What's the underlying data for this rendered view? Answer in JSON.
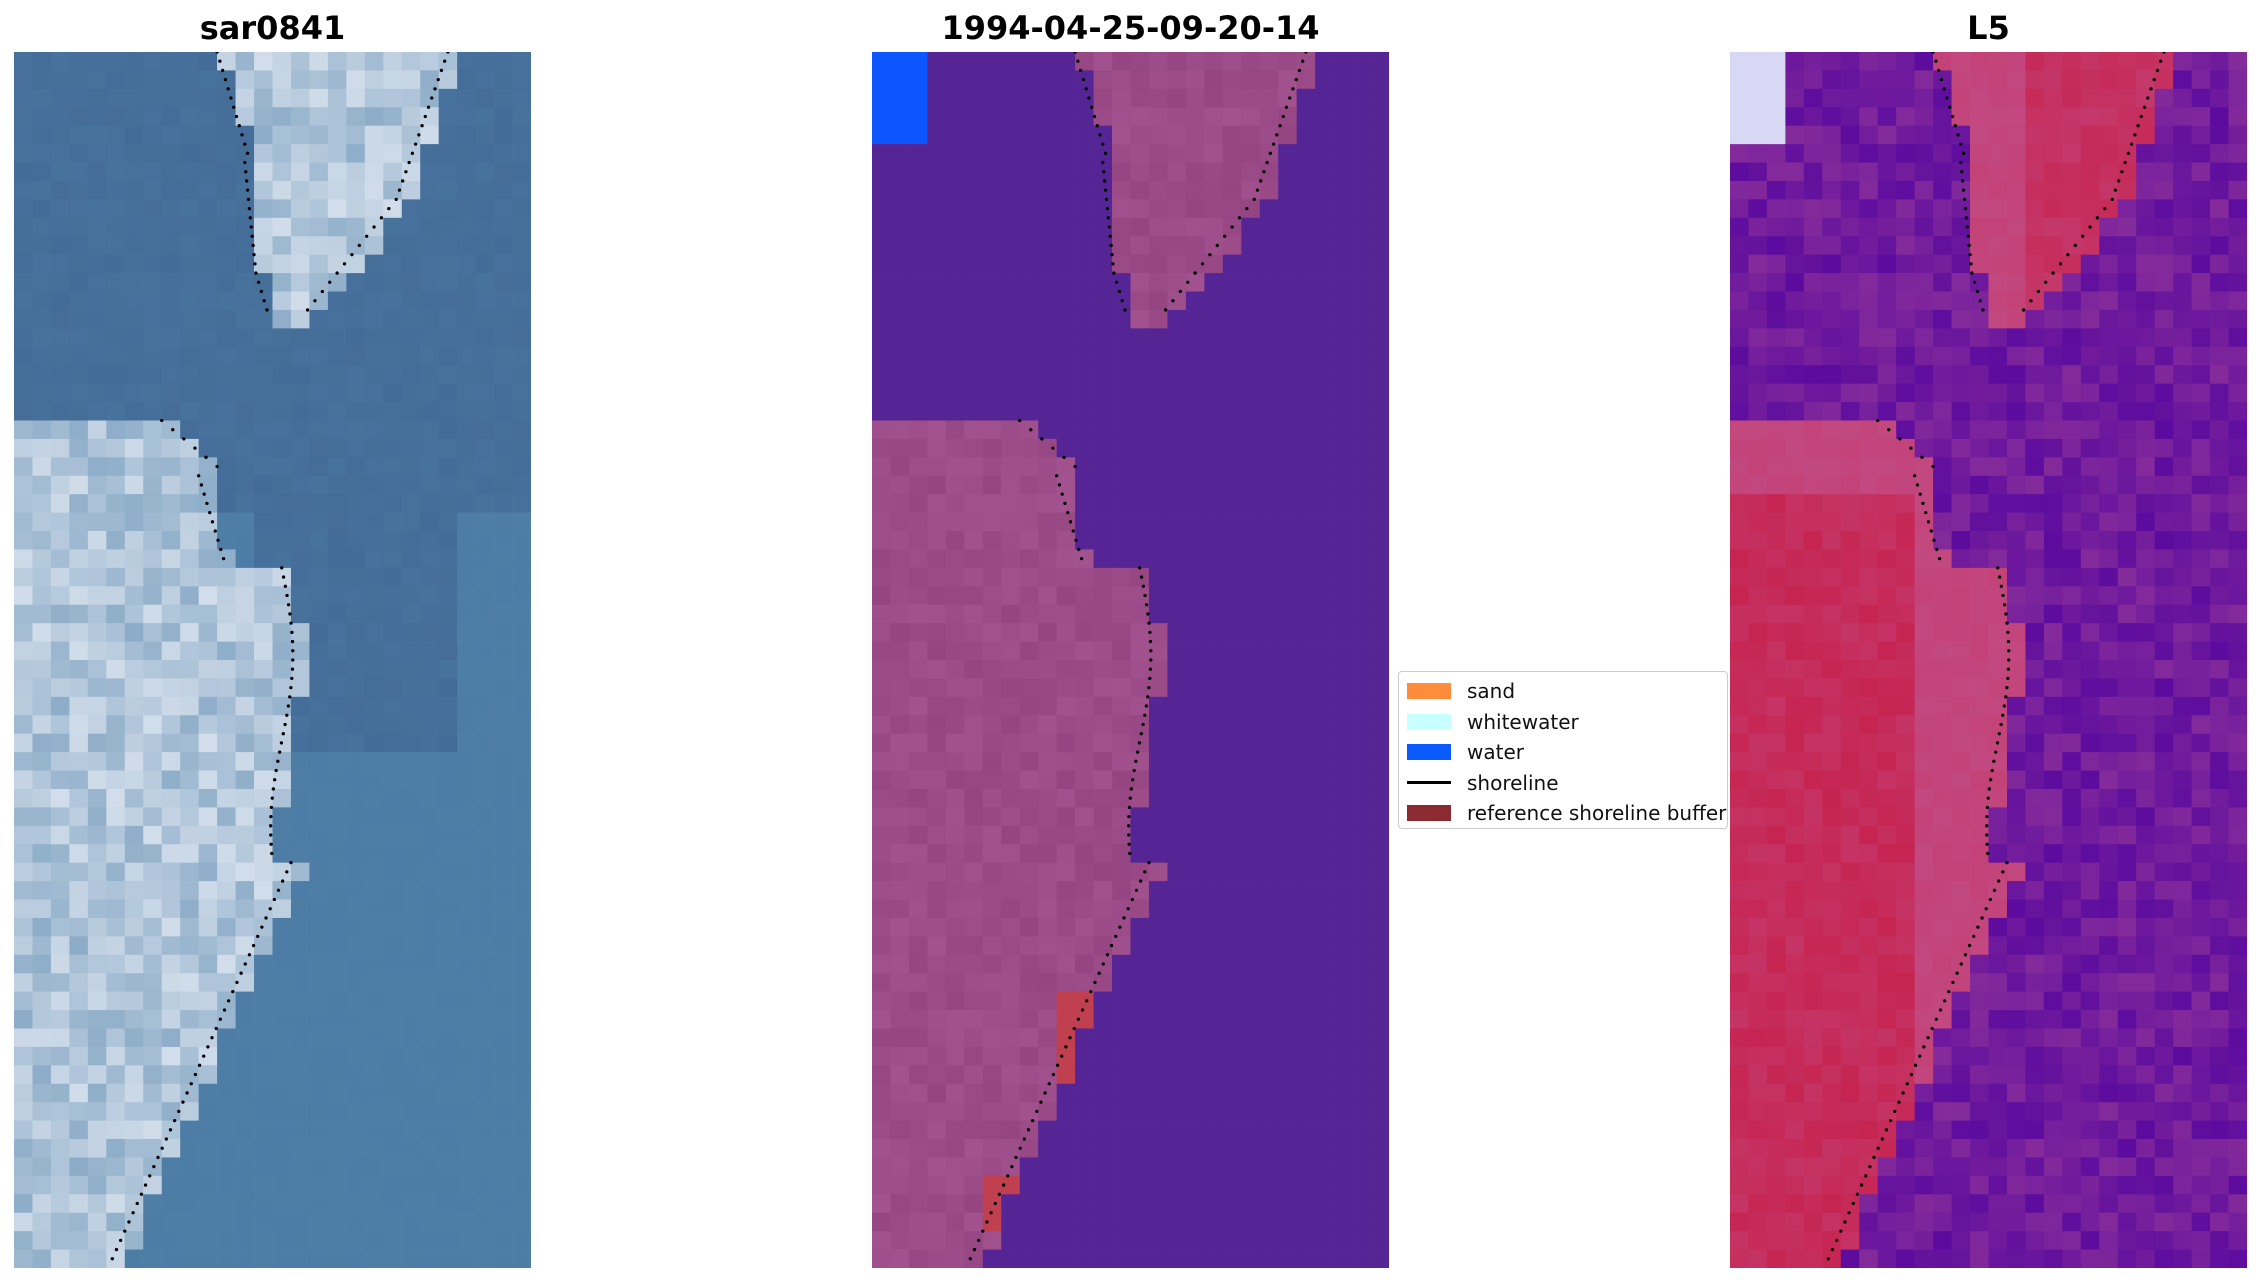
{
  "panels": [
    {
      "title": "sar0841",
      "kind": "rgb"
    },
    {
      "title": "1994-04-25-09-20-14",
      "kind": "classified"
    },
    {
      "title": "L5",
      "kind": "index"
    }
  ],
  "legend": {
    "items": [
      {
        "label": "sand",
        "type": "patch",
        "color": "#ff8c3a"
      },
      {
        "label": "whitewater",
        "type": "patch",
        "color": "#c8ffff"
      },
      {
        "label": "water",
        "type": "patch",
        "color": "#0a5bff"
      },
      {
        "label": "shoreline",
        "type": "line",
        "color": "#000000"
      },
      {
        "label": "reference shoreline buffer",
        "type": "patch",
        "color": "#8b2a30"
      }
    ]
  },
  "colors": {
    "rgb_water": "#4f80a8",
    "rgb_dark_water": "#3d5f8d",
    "rgb_bright": "#d8e2ee",
    "classified_water": "#552595",
    "classified_land": "#a2528e",
    "classified_buffer": "#c04050",
    "classified_water_blue": "#0d55ff",
    "index_low": "#5c0b9e",
    "index_high": "#c8163f",
    "index_mid": "#c05a96"
  }
}
